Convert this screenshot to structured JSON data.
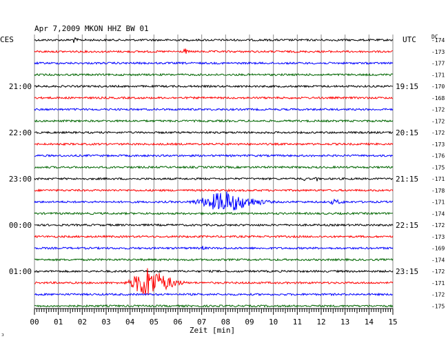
{
  "chart_data": {
    "type": "line",
    "title": "Apr 7,2009   MKON HHZ BW 01",
    "left_label": "CES",
    "right_label": "UTC",
    "dc_label": "DC",
    "xlabel": "Zeit [min]",
    "xlim": [
      0,
      15
    ],
    "x_ticks": [
      "00",
      "01",
      "02",
      "03",
      "04",
      "05",
      "06",
      "07",
      "08",
      "09",
      "10",
      "11",
      "12",
      "13",
      "14",
      "15"
    ],
    "grid": true,
    "corner_mark": "ↄ",
    "colors": {
      "black": "#000000",
      "red": "#ff0000",
      "blue": "#0000ff",
      "green": "#006600"
    },
    "color_cycle": [
      "black",
      "red",
      "blue",
      "green"
    ],
    "left_hour_labels": [
      {
        "row": 4,
        "text": "21:00"
      },
      {
        "row": 8,
        "text": "22:00"
      },
      {
        "row": 12,
        "text": "23:00"
      },
      {
        "row": 16,
        "text": "00:00"
      },
      {
        "row": 20,
        "text": "01:00"
      }
    ],
    "right_hour_labels": [
      {
        "row": 4,
        "text": "19:15"
      },
      {
        "row": 8,
        "text": "20:15"
      },
      {
        "row": 12,
        "text": "21:15"
      },
      {
        "row": 16,
        "text": "22:15"
      },
      {
        "row": 20,
        "text": "23:15"
      }
    ],
    "dc_offsets": [
      "-174",
      "-173",
      "-177",
      "-171",
      "-170",
      "-168",
      "-172",
      "-172",
      "-172",
      "-173",
      "-176",
      "-175",
      "-171",
      "-178",
      "-171",
      "-174",
      "-172",
      "-173",
      "-169",
      "-174",
      "-172",
      "-171",
      "-172",
      "-175"
    ],
    "events": [
      {
        "row": 0,
        "start": 1.55,
        "end": 1.9,
        "peak": 1.6,
        "amplitude": 4
      },
      {
        "row": 1,
        "start": 6.15,
        "end": 6.45,
        "peak": 6.3,
        "amplitude": 4
      },
      {
        "row": 12,
        "start": 11.25,
        "end": 11.35,
        "peak": 11.3,
        "amplitude": 8
      },
      {
        "row": 12,
        "start": 11.75,
        "end": 11.85,
        "peak": 11.8,
        "amplitude": 10
      },
      {
        "row": 14,
        "start": 6.3,
        "end": 10.2,
        "peak": 7.9,
        "amplitude": 16
      },
      {
        "row": 14,
        "start": 12.3,
        "end": 13.2,
        "peak": 12.5,
        "amplitude": 3
      },
      {
        "row": 21,
        "start": 3.7,
        "end": 6.5,
        "peak": 4.65,
        "amplitude": 24
      },
      {
        "row": 18,
        "start": 7.0,
        "end": 7.2,
        "peak": 7.05,
        "amplitude": 3
      }
    ]
  }
}
